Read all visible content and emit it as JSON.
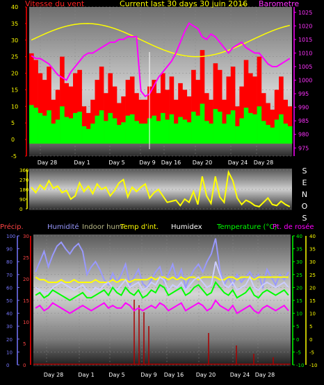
{
  "header": {
    "title": "Current last 30 days 30 juin 2016",
    "wind_label": "Vitesse du vent",
    "baro_label": "Barometre",
    "dash": "---"
  },
  "colors": {
    "wind": "#ff0000",
    "gust": "#00ff00",
    "avg_line": "#ffff00",
    "barometer": "#ff00ff",
    "wind_dir": "#ffff00",
    "precip": "#aa0000",
    "humidity": "#9999ff",
    "indoor_hum": "#cccccc",
    "temp_int": "#ffff00",
    "humidex": "#ccccff",
    "temperature": "#00ff00",
    "dew_point": "#ff00ff"
  },
  "chart_data": [
    {
      "type": "bar",
      "name": "wind",
      "left_axis_ticks": [
        "40",
        "35",
        "30",
        "25",
        "20",
        "15",
        "10",
        "5",
        "0",
        "-5"
      ],
      "right_axis_ticks": [
        "1025",
        "1020",
        "1015",
        "1010",
        "1005",
        "1000",
        "995",
        "990",
        "985",
        "980",
        "975"
      ],
      "x_ticks": [
        "Day 28",
        "Day 1",
        "Day 5",
        "Day 9",
        "Day 16",
        "Day 20",
        "Day 24",
        "Day 28"
      ],
      "ylim": [
        -5,
        40
      ],
      "y2lim": [
        972,
        1027
      ],
      "series": [
        {
          "name": "Vitesse du vent",
          "values": [
            26,
            24,
            20,
            18,
            22,
            12,
            15,
            25,
            17,
            16,
            20,
            21,
            10,
            8,
            12,
            18,
            22,
            14,
            20,
            16,
            11,
            13,
            18,
            19,
            14,
            12,
            12,
            16,
            18,
            14,
            20,
            15,
            19,
            12,
            17,
            15,
            13,
            21,
            18,
            27,
            14,
            12,
            23,
            21,
            12,
            19,
            22,
            10,
            16,
            24,
            20,
            19,
            25,
            14,
            11,
            9,
            15,
            19,
            12,
            10
          ]
        },
        {
          "name": "Barometre",
          "values": [
            1009,
            1008,
            1008,
            1007,
            1006,
            1004,
            1002,
            1001,
            1000,
            1003,
            1005,
            1007,
            1009,
            1010,
            1010,
            1011,
            1012,
            1013,
            1014,
            1014,
            1015,
            1015,
            1016,
            1016,
            1016,
            996,
            994,
            995,
            998,
            1001,
            1003,
            1005,
            1007,
            1010,
            1014,
            1018,
            1021,
            1020,
            1019,
            1016,
            1015,
            1017,
            1016,
            1014,
            1012,
            1010,
            1012,
            1013,
            1014,
            1012,
            1011,
            1010,
            1010,
            1008,
            1006,
            1005,
            1005,
            1006,
            1007,
            1008
          ]
        }
      ]
    },
    {
      "type": "line",
      "name": "wind-direction",
      "y_ticks": [
        "360",
        "270",
        "180",
        "90",
        "0"
      ],
      "compass": [
        "S",
        "E",
        "N",
        "O",
        "S"
      ],
      "ylim": [
        0,
        360
      ],
      "series": [
        {
          "name": "direction",
          "values": [
            200,
            150,
            220,
            180,
            260,
            190,
            210,
            150,
            170,
            90,
            120,
            240,
            160,
            210,
            140,
            230,
            180,
            200,
            120,
            170,
            240,
            270,
            110,
            200,
            160,
            200,
            230,
            100,
            150,
            180,
            120,
            60,
            70,
            80,
            30,
            90,
            60,
            160,
            40,
            300,
            120,
            50,
            300,
            110,
            60,
            340,
            260,
            100,
            40,
            80,
            60,
            30,
            20,
            60,
            100,
            40,
            30,
            70,
            40,
            20
          ]
        }
      ]
    },
    {
      "type": "line",
      "name": "temperature-humidity",
      "left_axis_ticks": [
        "100",
        "90",
        "80",
        "70",
        "60",
        "50",
        "40",
        "30",
        "20",
        "10",
        "0"
      ],
      "left_axis2_ticks": [
        "30",
        "25",
        "20",
        "15",
        "10",
        "5",
        "0"
      ],
      "right_axis_ticks": [
        "40",
        "35",
        "30",
        "25",
        "20",
        "15",
        "10",
        "5",
        "0",
        "-5",
        "-10"
      ],
      "legend": [
        "Précip.",
        "Humidité",
        "Indoor hum",
        "Temp d'int.",
        "Humidex",
        "Temperature (°C)",
        "Pt. de rosée"
      ],
      "x_ticks": [
        "Day 28",
        "Day 1",
        "Day 5",
        "Day 9",
        "Day 16",
        "Day 20",
        "Day 24",
        "Day 28"
      ],
      "ylim": [
        -10,
        40
      ],
      "series": [
        {
          "name": "Humidité",
          "values": [
            72,
            80,
            88,
            76,
            85,
            92,
            95,
            90,
            86,
            91,
            94,
            88,
            70,
            76,
            80,
            74,
            66,
            62,
            71,
            64,
            70,
            78,
            62,
            68,
            74,
            63,
            60,
            66,
            72,
            76,
            64,
            70,
            78,
            66,
            74,
            60,
            68,
            74,
            78,
            72,
            80,
            86,
            98,
            74,
            62,
            68,
            62,
            70,
            64,
            68,
            72,
            66,
            70,
            60,
            74,
            68,
            62,
            70,
            66,
            72
          ]
        },
        {
          "name": "Temp d'int.",
          "values": [
            24,
            23,
            23,
            22,
            22,
            22,
            23,
            22,
            22,
            23,
            22,
            22,
            22,
            22,
            23,
            22,
            22,
            22,
            23,
            22,
            23,
            23,
            22,
            23,
            23,
            23,
            23,
            24,
            23,
            24,
            24,
            23,
            24,
            23,
            24,
            23,
            24,
            24,
            23,
            24,
            24,
            24,
            24,
            23,
            23,
            24,
            24,
            23,
            24,
            24,
            24,
            23,
            24,
            24,
            24,
            24,
            24,
            24,
            24,
            24
          ]
        },
        {
          "name": "Humidex",
          "values": [
            20,
            19,
            18,
            18,
            20,
            21,
            22,
            21,
            20,
            19,
            20,
            21,
            19,
            18,
            20,
            19,
            21,
            22,
            20,
            19,
            21,
            23,
            20,
            21,
            22,
            19,
            20,
            22,
            21,
            24,
            23,
            19,
            21,
            20,
            22,
            19,
            21,
            23,
            24,
            22,
            20,
            21,
            30,
            25,
            21,
            20,
            22,
            19,
            20,
            21,
            24,
            20,
            19,
            21,
            22,
            21,
            20,
            21,
            22,
            20
          ]
        },
        {
          "name": "Temperature (°C)",
          "values": [
            17,
            18,
            16,
            17,
            19,
            18,
            17,
            16,
            15,
            16,
            17,
            18,
            16,
            16,
            17,
            18,
            19,
            17,
            20,
            18,
            17,
            20,
            18,
            17,
            19,
            16,
            17,
            19,
            18,
            21,
            20,
            17,
            18,
            19,
            20,
            17,
            18,
            20,
            21,
            19,
            17,
            18,
            22,
            20,
            18,
            17,
            19,
            16,
            17,
            18,
            20,
            17,
            16,
            18,
            19,
            18,
            17,
            18,
            19,
            17
          ]
        },
        {
          "name": "Pt. de rosée",
          "values": [
            12,
            13,
            11,
            12,
            14,
            13,
            12,
            11,
            10,
            11,
            12,
            13,
            12,
            11,
            12,
            13,
            14,
            12,
            13,
            12,
            12,
            14,
            13,
            11,
            12,
            11,
            12,
            13,
            12,
            14,
            13,
            11,
            12,
            13,
            14,
            11,
            12,
            13,
            14,
            13,
            11,
            12,
            15,
            13,
            12,
            11,
            13,
            10,
            11,
            12,
            13,
            11,
            10,
            12,
            13,
            12,
            11,
            12,
            13,
            11
          ]
        },
        {
          "name": "Précip.",
          "values": [
            0,
            0,
            0,
            0,
            0,
            0,
            0,
            0,
            0,
            0,
            0,
            0,
            0,
            0,
            0,
            0,
            0,
            0,
            0,
            0,
            0,
            0,
            0,
            0,
            0,
            0,
            0,
            0,
            0,
            0,
            0,
            0,
            0,
            0,
            0,
            0,
            0,
            0,
            0,
            0,
            0,
            0,
            0,
            0,
            0,
            0,
            0,
            0,
            0,
            0,
            0,
            0,
            0,
            0,
            0,
            0,
            0,
            0,
            0,
            0
          ]
        }
      ]
    }
  ]
}
